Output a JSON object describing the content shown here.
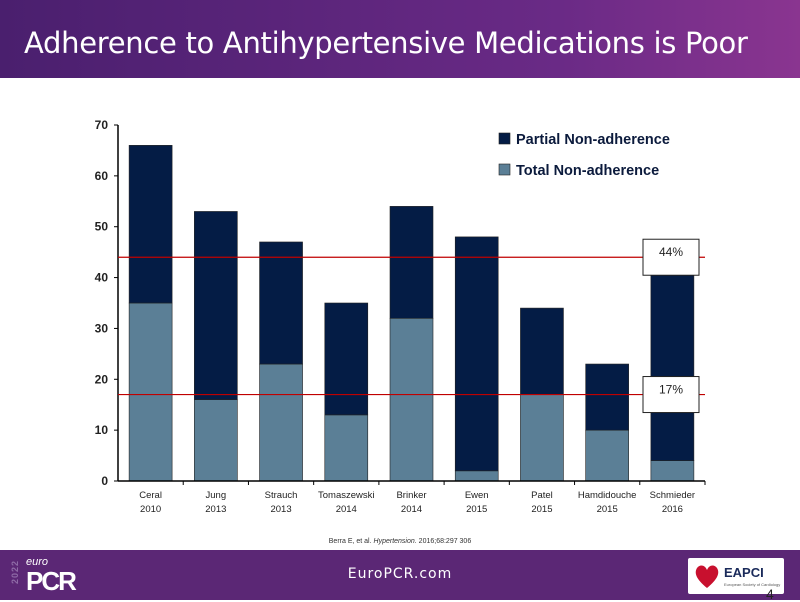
{
  "header": {
    "title": "Adherence to Antihypertensive Medications is Poor"
  },
  "chart_data": {
    "type": "bar",
    "stacked": true,
    "categories": [
      [
        "Ceral",
        "2010"
      ],
      [
        "Jung",
        "2013"
      ],
      [
        "Strauch",
        "2013"
      ],
      [
        "Tomaszewski",
        "2014"
      ],
      [
        "Brinker",
        "2014"
      ],
      [
        "Ewen",
        "2015"
      ],
      [
        "Patel",
        "2015"
      ],
      [
        "Hamdidouche",
        "2015"
      ],
      [
        "Schmieder",
        "2016"
      ]
    ],
    "series": [
      {
        "name": "Total Non-adherence",
        "color": "#5b7f96",
        "values": [
          35,
          16,
          23,
          13,
          32,
          2,
          17,
          10,
          4
        ]
      },
      {
        "name": "Partial Non-adherence",
        "color": "#041c45",
        "values": [
          31,
          37,
          24,
          22,
          22,
          46,
          17,
          13,
          40
        ]
      }
    ],
    "ylim": [
      0,
      70
    ],
    "yticks": [
      0,
      10,
      20,
      30,
      40,
      50,
      60,
      70
    ],
    "reference_lines": [
      {
        "value": 44,
        "label": "44%",
        "color": "#c00000"
      },
      {
        "value": 17,
        "label": "17%",
        "color": "#c00000"
      }
    ],
    "legend": "top-right",
    "grid": false
  },
  "citation": {
    "authors": "Berra E, et al.",
    "journal": "Hypertension.",
    "ref": "2016;68:297 306"
  },
  "footer": {
    "url": "EuroPCR.com",
    "logo_year": "2022",
    "logo_euro": "euro",
    "logo_main": "PCR",
    "partner": "EAPCI",
    "partner_sub": "European Society of Cardiology",
    "page": "4"
  }
}
